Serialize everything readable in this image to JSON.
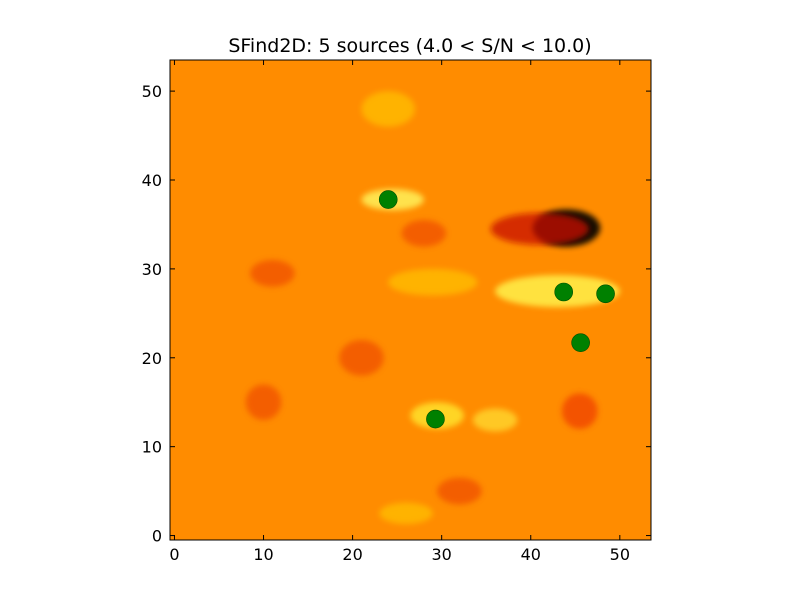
{
  "chart_data": {
    "type": "heatmap",
    "title": "SFind2D: 5 sources (4.0 < S/N < 10.0)",
    "xlabel": "",
    "ylabel": "",
    "xlim": [
      -0.5,
      53.5
    ],
    "ylim": [
      -0.5,
      53.5
    ],
    "xticks": [
      0,
      10,
      20,
      30,
      40,
      50
    ],
    "yticks": [
      0,
      10,
      20,
      30,
      40,
      50
    ],
    "x_tick_labels": [
      "0",
      "10",
      "20",
      "30",
      "40",
      "50"
    ],
    "y_tick_labels": [
      "0",
      "10",
      "20",
      "30",
      "40",
      "50"
    ],
    "colormap": "hot",
    "background_value_color": "#ff8c00",
    "image_features": [
      {
        "kind": "bright",
        "x": 24.5,
        "y": 37.8,
        "sx": 3.5,
        "sy": 1.2,
        "color": "#ffff66"
      },
      {
        "kind": "bright",
        "x": 43,
        "y": 27.5,
        "sx": 7,
        "sy": 1.8,
        "color": "#ffff55"
      },
      {
        "kind": "bright",
        "x": 29.5,
        "y": 13.5,
        "sx": 3,
        "sy": 1.5,
        "color": "#ffee33"
      },
      {
        "kind": "bright",
        "x": 36,
        "y": 13,
        "sx": 2.5,
        "sy": 1.3,
        "color": "#ffdd33"
      },
      {
        "kind": "bright",
        "x": 24,
        "y": 48,
        "sx": 3,
        "sy": 2,
        "color": "#ffc000"
      },
      {
        "kind": "bright",
        "x": 26,
        "y": 2.5,
        "sx": 3,
        "sy": 1.2,
        "color": "#ffc000"
      },
      {
        "kind": "bright",
        "x": 29,
        "y": 28.5,
        "sx": 5,
        "sy": 1.5,
        "color": "#ffc000"
      },
      {
        "kind": "dark",
        "x": 44,
        "y": 34.6,
        "sx": 3.8,
        "sy": 2.1,
        "color": "#000000"
      },
      {
        "kind": "dark",
        "x": 41,
        "y": 34.5,
        "sx": 5.5,
        "sy": 1.8,
        "color": "#c81000"
      },
      {
        "kind": "dark",
        "x": 45.5,
        "y": 14,
        "sx": 2,
        "sy": 2,
        "color": "#f04000"
      },
      {
        "kind": "dark",
        "x": 10,
        "y": 15,
        "sx": 2,
        "sy": 2,
        "color": "#f05000"
      },
      {
        "kind": "dark",
        "x": 32,
        "y": 5,
        "sx": 2.5,
        "sy": 1.5,
        "color": "#f05000"
      },
      {
        "kind": "dark",
        "x": 11,
        "y": 29.5,
        "sx": 2.5,
        "sy": 1.5,
        "color": "#f05000"
      },
      {
        "kind": "dark",
        "x": 21,
        "y": 20,
        "sx": 2.5,
        "sy": 2,
        "color": "#f05000"
      },
      {
        "kind": "dark",
        "x": 28,
        "y": 34,
        "sx": 2.5,
        "sy": 1.5,
        "color": "#f05000"
      }
    ],
    "sources": {
      "x": [
        24.0,
        43.7,
        48.4,
        45.6,
        29.3
      ],
      "y": [
        37.8,
        27.4,
        27.2,
        21.7,
        13.1
      ],
      "color": "#008000"
    }
  }
}
